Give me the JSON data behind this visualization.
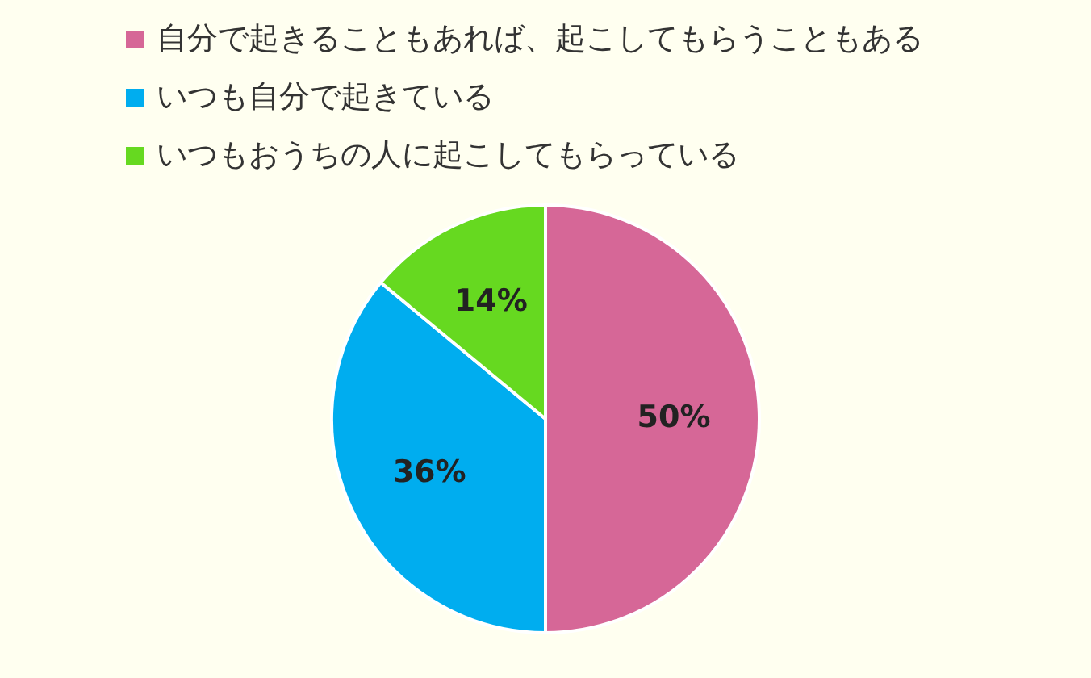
{
  "chart_data": {
    "type": "pie",
    "categories": [
      "自分で起きることもあれば、起こしてもらうこともある",
      "いつも自分で起きている",
      "いつもおうちの人に起こしてもらっている"
    ],
    "values": [
      50,
      36,
      14
    ],
    "colors": [
      "#d66797",
      "#00adef",
      "#66d920"
    ],
    "value_labels": [
      "50%",
      "36%",
      "14%"
    ],
    "legend": "top left"
  }
}
